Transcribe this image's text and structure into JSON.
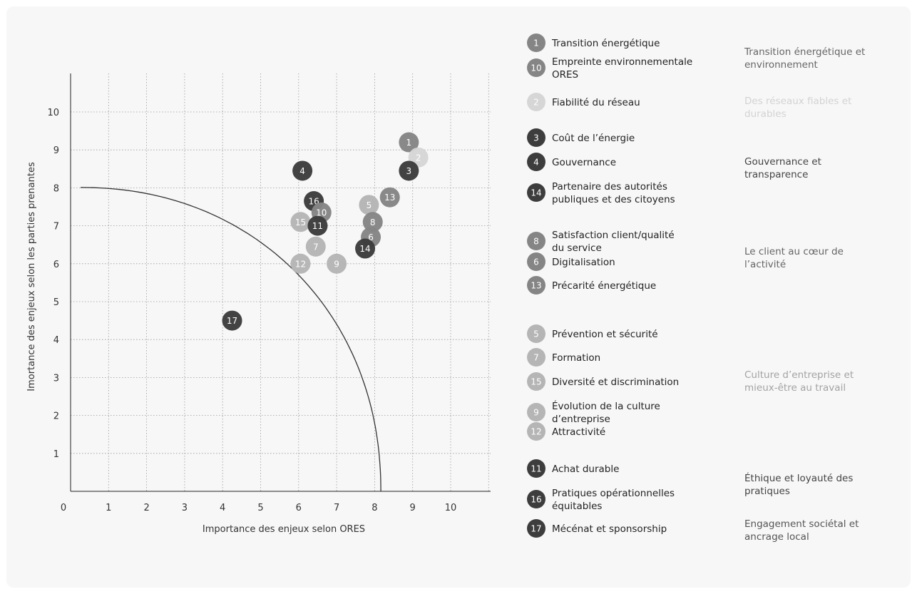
{
  "chart_data": {
    "type": "scatter",
    "xlabel": "Importance des enjeux selon ORES",
    "ylabel": "Imortance des enjeux selon les parties prenantes",
    "xlim": [
      0,
      11
    ],
    "ylim": [
      0,
      11
    ],
    "x_ticks": [
      "0",
      "1",
      "2",
      "3",
      "4",
      "5",
      "6",
      "7",
      "8",
      "9",
      "10"
    ],
    "y_ticks": [
      "1",
      "2",
      "3",
      "4",
      "5",
      "6",
      "7",
      "8",
      "9",
      "10"
    ],
    "grid": true,
    "threshold_curve": true,
    "points": [
      {
        "id": "1",
        "x": 8.9,
        "y": 9.2,
        "color": "#858585"
      },
      {
        "id": "2",
        "x": 9.15,
        "y": 8.8,
        "color": "#d6d6d6"
      },
      {
        "id": "3",
        "x": 8.9,
        "y": 8.45,
        "color": "#3d3d3d"
      },
      {
        "id": "4",
        "x": 6.1,
        "y": 8.45,
        "color": "#3d3d3d"
      },
      {
        "id": "13",
        "x": 8.4,
        "y": 7.75,
        "color": "#858585"
      },
      {
        "id": "5",
        "x": 7.85,
        "y": 7.55,
        "color": "#b5b5b5"
      },
      {
        "id": "16",
        "x": 6.4,
        "y": 7.65,
        "color": "#3d3d3d"
      },
      {
        "id": "10",
        "x": 6.6,
        "y": 7.35,
        "color": "#858585"
      },
      {
        "id": "15",
        "x": 6.05,
        "y": 7.1,
        "color": "#b5b5b5"
      },
      {
        "id": "11",
        "x": 6.5,
        "y": 7.0,
        "color": "#3d3d3d"
      },
      {
        "id": "8",
        "x": 7.95,
        "y": 7.1,
        "color": "#858585"
      },
      {
        "id": "6",
        "x": 7.9,
        "y": 6.7,
        "color": "#858585"
      },
      {
        "id": "7",
        "x": 6.45,
        "y": 6.45,
        "color": "#b5b5b5"
      },
      {
        "id": "14",
        "x": 7.75,
        "y": 6.4,
        "color": "#3d3d3d"
      },
      {
        "id": "12",
        "x": 6.05,
        "y": 6.0,
        "color": "#b5b5b5"
      },
      {
        "id": "9",
        "x": 7.0,
        "y": 6.0,
        "color": "#b5b5b5"
      },
      {
        "id": "17",
        "x": 4.25,
        "y": 4.5,
        "color": "#3d3d3d"
      }
    ],
    "legend": [
      {
        "id": "1",
        "label": [
          "Transition énergétique"
        ],
        "color": "#858585"
      },
      {
        "id": "10",
        "label": [
          "Empreinte environnementale",
          "ORES"
        ],
        "color": "#858585"
      },
      {
        "id": "2",
        "label": [
          "Fiabilité du réseau"
        ],
        "color": "#d6d6d6"
      },
      {
        "id": "3",
        "label": [
          "Coût de l’énergie"
        ],
        "color": "#3d3d3d"
      },
      {
        "id": "4",
        "label": [
          "Gouvernance"
        ],
        "color": "#3d3d3d"
      },
      {
        "id": "14",
        "label": [
          "Partenaire des autorités",
          "publiques et des citoyens"
        ],
        "color": "#3d3d3d"
      },
      {
        "id": "8",
        "label": [
          "Satisfaction client/qualité",
          "du service"
        ],
        "color": "#858585"
      },
      {
        "id": "6",
        "label": [
          "Digitalisation"
        ],
        "color": "#858585"
      },
      {
        "id": "13",
        "label": [
          "Précarité énergétique"
        ],
        "color": "#858585"
      },
      {
        "id": "5",
        "label": [
          "Prévention et sécurité"
        ],
        "color": "#b5b5b5"
      },
      {
        "id": "7",
        "label": [
          "Formation"
        ],
        "color": "#b5b5b5"
      },
      {
        "id": "15",
        "label": [
          "Diversité et discrimination"
        ],
        "color": "#b5b5b5"
      },
      {
        "id": "9",
        "label": [
          "Évolution de la culture",
          "d’entreprise"
        ],
        "color": "#b5b5b5"
      },
      {
        "id": "12",
        "label": [
          "Attractivité"
        ],
        "color": "#b5b5b5"
      },
      {
        "id": "11",
        "label": [
          "Achat durable"
        ],
        "color": "#3d3d3d"
      },
      {
        "id": "16",
        "label": [
          "Pratiques opérationnelles",
          "équitables"
        ],
        "color": "#3d3d3d"
      },
      {
        "id": "17",
        "label": [
          "Mécénat et sponsorship"
        ],
        "color": "#3d3d3d"
      }
    ],
    "categories": [
      {
        "label": [
          "Transition énergétique et",
          "environnement"
        ],
        "color": "#666666"
      },
      {
        "label": [
          "Des réseaux fiables et",
          "durables"
        ],
        "color": "#d3d3d3"
      },
      {
        "label": [
          "Gouvernance et",
          "transparence"
        ],
        "color": "#444444"
      },
      {
        "label": [
          "Le client au cœur de",
          "l’activité"
        ],
        "color": "#666666"
      },
      {
        "label": [
          "Culture d’entreprise et",
          "mieux-être au travail"
        ],
        "color": "#a3a3a3"
      },
      {
        "label": [
          "Éthique et loyauté des",
          "pratiques"
        ],
        "color": "#444444"
      },
      {
        "label": [
          "Engagement sociétal et",
          "ancrage local"
        ],
        "color": "#555555"
      }
    ]
  }
}
